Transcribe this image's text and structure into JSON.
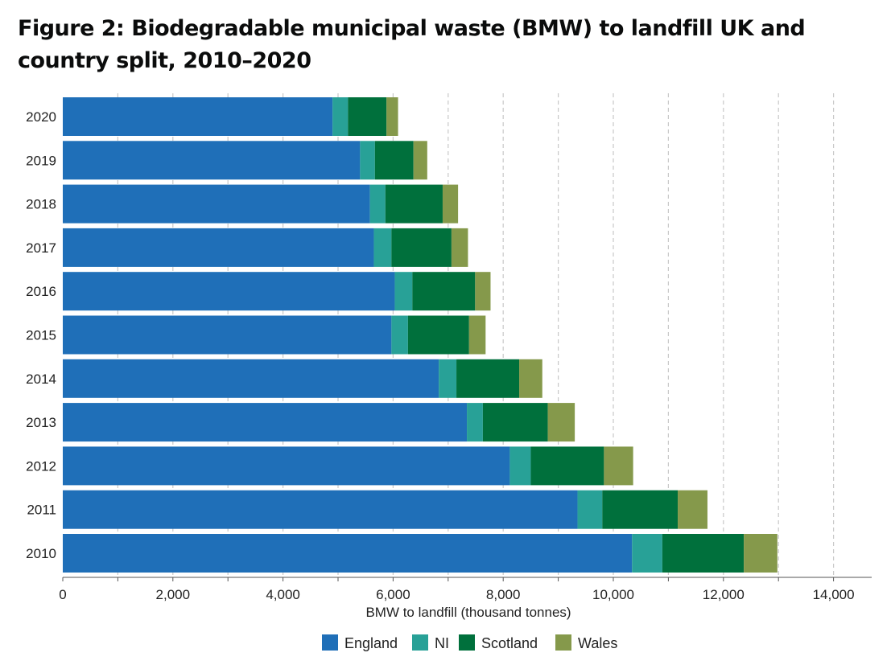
{
  "title": "Figure 2: Biodegradable municipal waste (BMW) to landfill UK and country split, 2010–2020",
  "chart_data": {
    "type": "bar",
    "orientation": "horizontal",
    "stacked": true,
    "title": "Figure 2: Biodegradable municipal waste (BMW) to landfill UK and country split, 2010–2020",
    "xlabel": "BMW to landfill (thousand tonnes)",
    "ylabel": "",
    "xlim": [
      0,
      14700
    ],
    "xticks": [
      0,
      2000,
      4000,
      6000,
      8000,
      10000,
      12000,
      14000
    ],
    "xtick_labels": [
      "0",
      "2,000",
      "4,000",
      "6,000",
      "8,000",
      "10,000",
      "12,000",
      "14,000"
    ],
    "grid": "vertical dashed",
    "legend": "bottom",
    "categories": [
      "2020",
      "2019",
      "2018",
      "2017",
      "2016",
      "2015",
      "2014",
      "2013",
      "2012",
      "2011",
      "2010"
    ],
    "series": [
      {
        "name": "England",
        "color": "#1f6fb8",
        "values": [
          4900,
          5400,
          5580,
          5650,
          6030,
          5970,
          6830,
          7340,
          8120,
          9350,
          10340
        ]
      },
      {
        "name": "NI",
        "color": "#28a197",
        "values": [
          280,
          270,
          280,
          320,
          320,
          300,
          320,
          290,
          380,
          450,
          550
        ]
      },
      {
        "name": "Scotland",
        "color": "#00703c",
        "values": [
          700,
          700,
          1040,
          1090,
          1140,
          1110,
          1140,
          1180,
          1330,
          1370,
          1480
        ]
      },
      {
        "name": "Wales",
        "color": "#85994b",
        "values": [
          210,
          250,
          280,
          300,
          280,
          300,
          420,
          490,
          530,
          540,
          610
        ]
      }
    ]
  }
}
